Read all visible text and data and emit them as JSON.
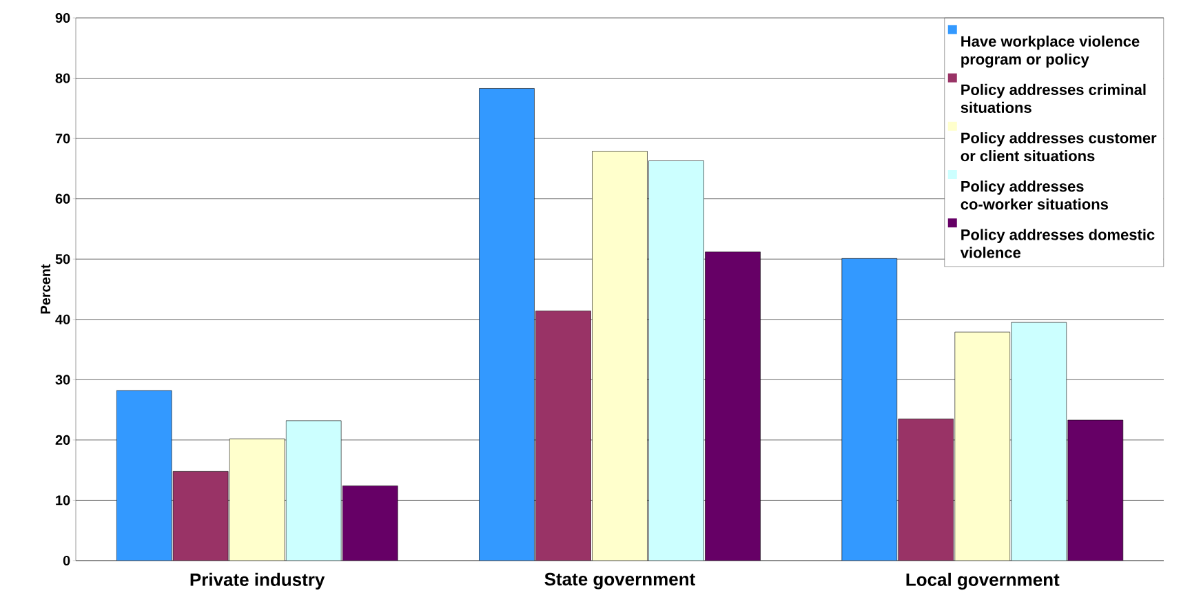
{
  "chart_data": {
    "type": "bar",
    "ylabel": "Percent",
    "categories": [
      "Private industry",
      "State government",
      "Local government"
    ],
    "series": [
      {
        "name": "Have workplace violence program or policy",
        "color": "#3399ff",
        "values": [
          28.2,
          78.3,
          50.1
        ]
      },
      {
        "name": "Policy addresses criminal situations",
        "color": "#993366",
        "values": [
          14.8,
          41.4,
          23.5
        ]
      },
      {
        "name": "Policy addresses customer or client situations",
        "color": "#ffffcc",
        "values": [
          20.2,
          67.9,
          37.9
        ]
      },
      {
        "name": "Policy addresses co-worker situations",
        "color": "#ccffff",
        "values": [
          23.2,
          66.3,
          39.5
        ]
      },
      {
        "name": "Policy addresses domestic violence",
        "color": "#660066",
        "values": [
          12.4,
          51.2,
          23.3
        ]
      }
    ],
    "ylim": [
      0,
      90
    ],
    "yticks": [
      0,
      10,
      20,
      30,
      40,
      50,
      60,
      70,
      80,
      90
    ],
    "grid": "y",
    "legend": "top right"
  }
}
